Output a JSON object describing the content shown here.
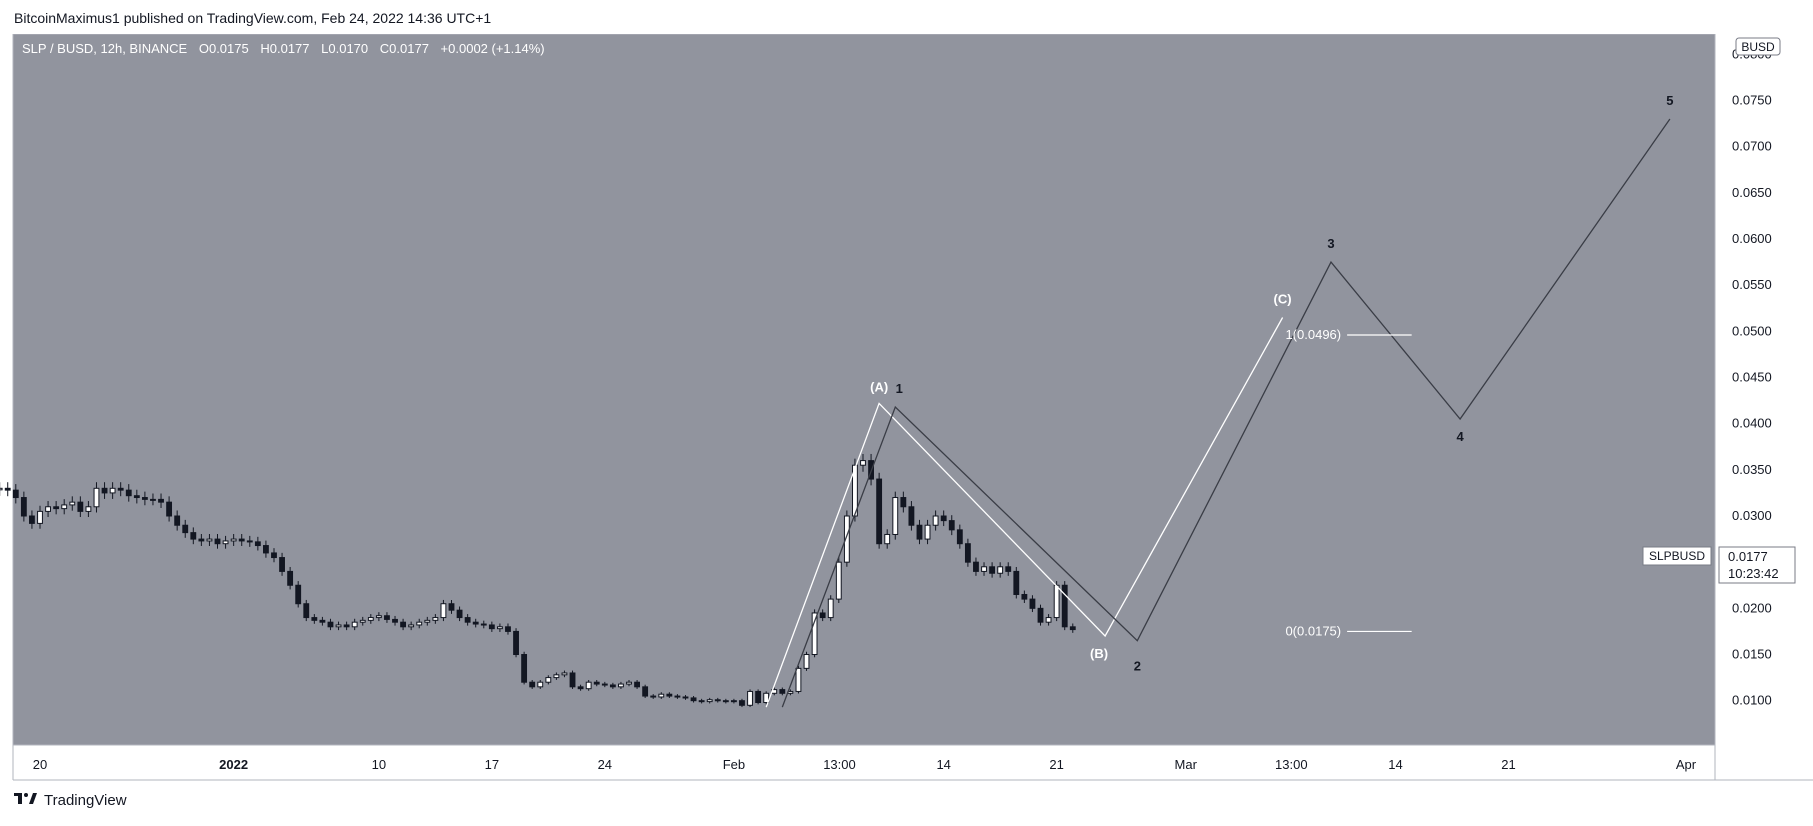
{
  "header": {
    "text": "BitcoinMaximus1 published on TradingView.com, Feb 24, 2022 14:36 UTC+1"
  },
  "footer": {
    "brand": "TradingView",
    "logo_icon": "tradingview-logo-icon"
  },
  "legend": {
    "symbol": "SLP / BUSD, 12h, BINANCE",
    "o_label": "O",
    "o": "0.0175",
    "h_label": "H",
    "h": "0.0177",
    "l_label": "L",
    "l": "0.0170",
    "c_label": "C",
    "c": "0.0177",
    "change": "+0.0002 (+1.14%)"
  },
  "price_tag": {
    "symbol": "SLPBUSD",
    "price": "0.0177",
    "countdown": "10:23:42"
  },
  "colors": {
    "plot_bg": "#91949e",
    "axis_bg": "#ffffff",
    "text_light": "#ffffff",
    "text_dark": "#131722",
    "candle_up": "#ffffff",
    "candle_down": "#131722",
    "wave_abc": "#ffffff",
    "wave_12345": "#3a3d46"
  },
  "chart_data": {
    "type": "candlestick",
    "quote_currency": "BUSD",
    "y_ticks": [
      "0.0100",
      "0.0150",
      "0.0200",
      "0.0250",
      "0.0300",
      "0.0350",
      "0.0400",
      "0.0450",
      "0.0500",
      "0.0550",
      "0.0600",
      "0.0650",
      "0.0700",
      "0.0750",
      "0.0800"
    ],
    "y_tick_values": [
      0.01,
      0.015,
      0.02,
      0.025,
      0.03,
      0.035,
      0.04,
      0.045,
      0.05,
      0.055,
      0.06,
      0.065,
      0.07,
      0.075,
      0.08
    ],
    "ylim": [
      0.0052,
      0.0822
    ],
    "x_ticks": [
      {
        "label": "20",
        "date": "2021-12-20",
        "bold": false
      },
      {
        "label": "2022",
        "date": "2022-01-01",
        "bold": true
      },
      {
        "label": "10",
        "date": "2022-01-10",
        "bold": false
      },
      {
        "label": "17",
        "date": "2022-01-17",
        "bold": false
      },
      {
        "label": "24",
        "date": "2022-01-24",
        "bold": false
      },
      {
        "label": "Feb",
        "date": "2022-02-01",
        "bold": false
      },
      {
        "label": "13:00",
        "date": "2022-02-07 13:00",
        "bold": false
      },
      {
        "label": "14",
        "date": "2022-02-14",
        "bold": false
      },
      {
        "label": "21",
        "date": "2022-02-21",
        "bold": false
      },
      {
        "label": "Mar",
        "date": "2022-03-01",
        "bold": false
      },
      {
        "label": "13:00",
        "date": "2022-03-07 13:00",
        "bold": false
      },
      {
        "label": "14",
        "date": "2022-03-14",
        "bold": false
      },
      {
        "label": "21",
        "date": "2022-03-21",
        "bold": false
      },
      {
        "label": "Apr",
        "date": "2022-04-01",
        "bold": false
      }
    ],
    "ohlc_close": [
      0.033,
      0.0328,
      0.032,
      0.03,
      0.0292,
      0.0305,
      0.031,
      0.0308,
      0.0312,
      0.0315,
      0.0305,
      0.031,
      0.033,
      0.0325,
      0.033,
      0.0328,
      0.0322,
      0.032,
      0.0318,
      0.0318,
      0.0315,
      0.03,
      0.029,
      0.0282,
      0.0275,
      0.0273,
      0.0275,
      0.027,
      0.0273,
      0.0275,
      0.0273,
      0.0272,
      0.0268,
      0.026,
      0.0255,
      0.024,
      0.0225,
      0.0205,
      0.019,
      0.0187,
      0.0185,
      0.018,
      0.0182,
      0.018,
      0.0185,
      0.0187,
      0.019,
      0.0192,
      0.0188,
      0.0185,
      0.018,
      0.0182,
      0.0185,
      0.0187,
      0.019,
      0.0205,
      0.0198,
      0.019,
      0.0185,
      0.0183,
      0.0182,
      0.0178,
      0.018,
      0.0175,
      0.015,
      0.012,
      0.0115,
      0.012,
      0.0125,
      0.0128,
      0.013,
      0.0115,
      0.0113,
      0.012,
      0.0118,
      0.0117,
      0.0115,
      0.0118,
      0.012,
      0.0115,
      0.0105,
      0.0104,
      0.0107,
      0.0105,
      0.0104,
      0.0103,
      0.01,
      0.0099,
      0.0101,
      0.01,
      0.0099,
      0.01,
      0.0095,
      0.011,
      0.0098,
      0.0108,
      0.0112,
      0.0108,
      0.011,
      0.0135,
      0.015,
      0.0195,
      0.019,
      0.021,
      0.025,
      0.03,
      0.0355,
      0.036,
      0.034,
      0.027,
      0.028,
      0.032,
      0.031,
      0.029,
      0.0275,
      0.029,
      0.03,
      0.0295,
      0.0285,
      0.027,
      0.025,
      0.024,
      0.0245,
      0.0238,
      0.0245,
      0.024,
      0.0215,
      0.021,
      0.02,
      0.0185,
      0.019,
      0.0225,
      0.018,
      0.0177
    ],
    "annotations": {
      "abc_wave": [
        {
          "label": "",
          "date": "2022-02-03",
          "price": 0.0093
        },
        {
          "label": "(A)",
          "date": "2022-02-10",
          "price": 0.0422
        },
        {
          "label": "(B)",
          "date": "2022-02-24",
          "price": 0.017
        },
        {
          "label": "(C)",
          "date": "2022-03-07",
          "price": 0.0515
        }
      ],
      "impulse_wave": [
        {
          "label": "",
          "date": "2022-02-04",
          "price": 0.0093
        },
        {
          "label": "1",
          "date": "2022-02-11",
          "price": 0.0418
        },
        {
          "label": "2",
          "date": "2022-02-26",
          "price": 0.0165
        },
        {
          "label": "3",
          "date": "2022-03-10",
          "price": 0.0575
        },
        {
          "label": "4",
          "date": "2022-03-18",
          "price": 0.0405
        },
        {
          "label": "5",
          "date": "2022-03-31",
          "price": 0.073
        }
      ],
      "fib_levels": [
        {
          "label": "1(0.0496)",
          "price": 0.0496
        },
        {
          "label": "0(0.0175)",
          "price": 0.0175
        }
      ]
    }
  }
}
